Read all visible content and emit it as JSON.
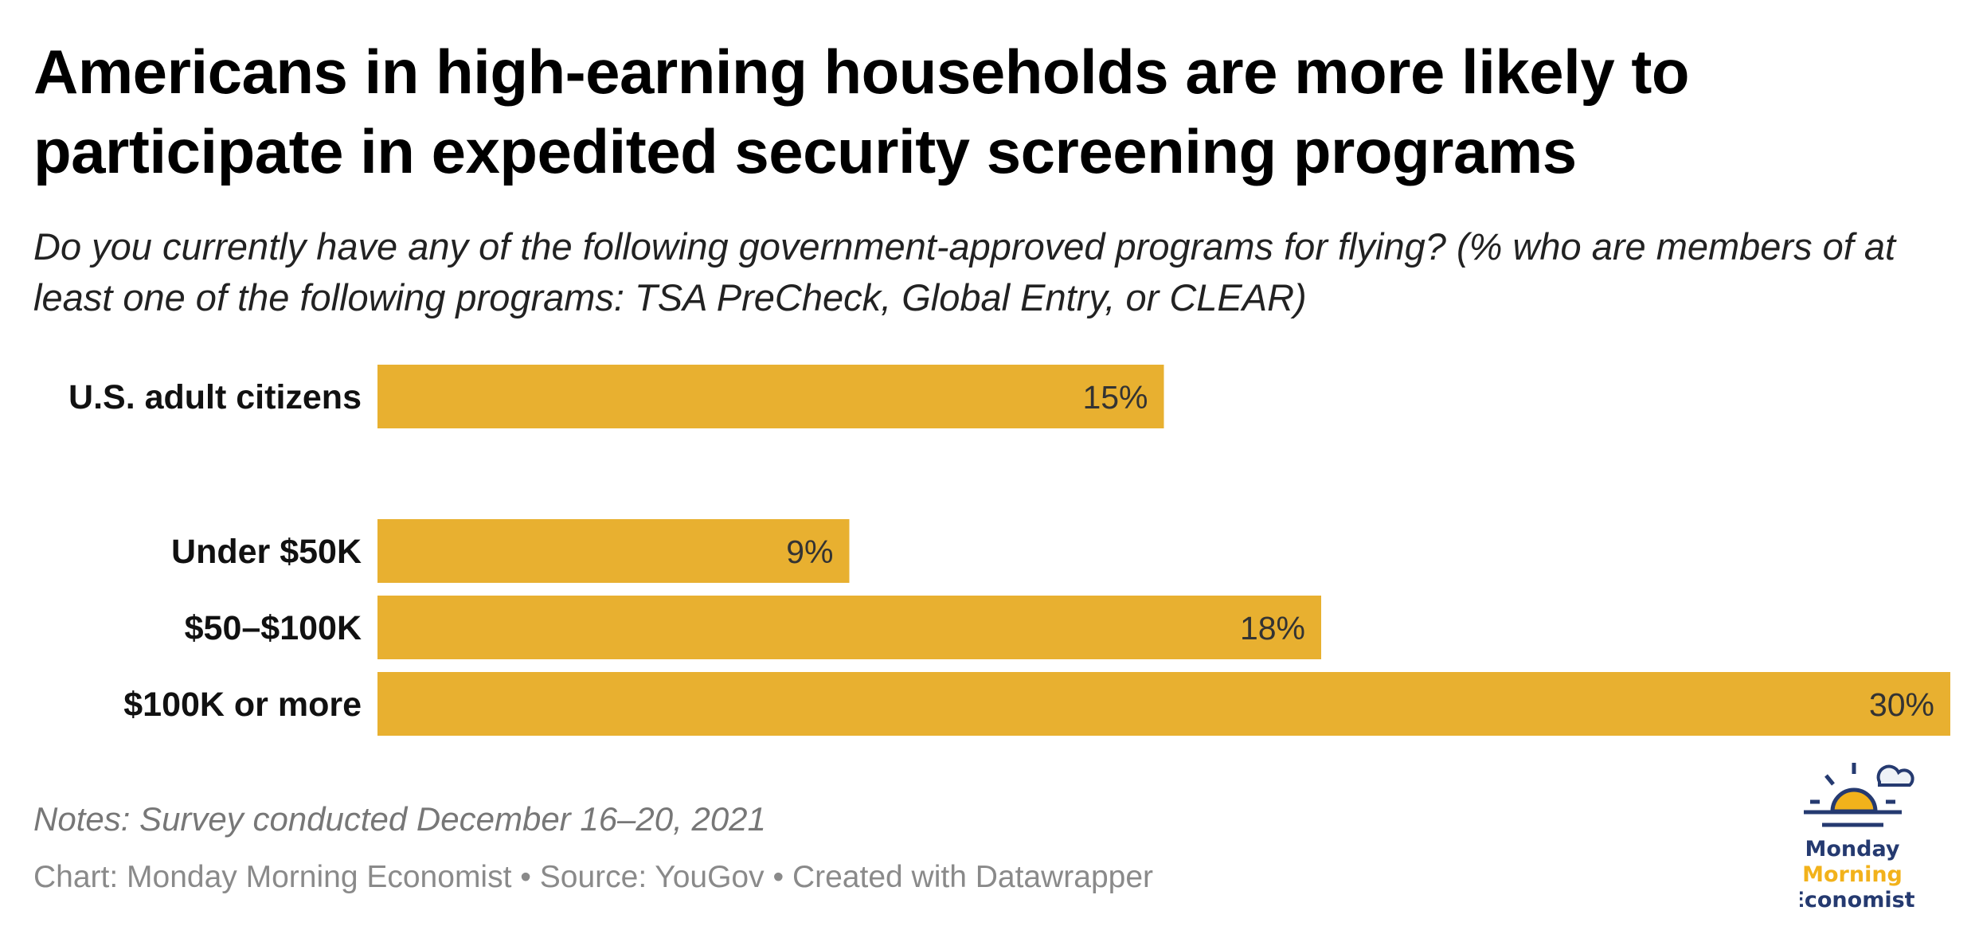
{
  "chart_data": {
    "type": "bar",
    "orientation": "horizontal",
    "title": "Americans in high-earning households are more likely to participate in expedited security screening programs",
    "subtitle": "Do you currently have any of the following government-approved programs for flying? (% who are members of at least one of the following programs: TSA PreCheck, Global Entry, or CLEAR)",
    "categories": [
      "U.S. adult citizens",
      "Under $50K",
      "$50–$100K",
      "$100K or more"
    ],
    "values": [
      15,
      9,
      18,
      30
    ],
    "value_labels": [
      "15%",
      "9%",
      "18%",
      "30%"
    ],
    "unit": "%",
    "xlim": [
      0,
      30
    ],
    "grid": false,
    "bar_color": "#e8b030",
    "xlabel": "",
    "ylabel": ""
  },
  "footer": {
    "notes": "Notes: Survey conducted December 16–20, 2021",
    "credit": "Chart: Monday Morning Economist • Source: YouGov • Created with Datawrapper"
  },
  "logo": {
    "line1": "Monday",
    "line2": "Morning",
    "line3": "Economist",
    "navy": "#253a70",
    "gold": "#f2b21b"
  }
}
